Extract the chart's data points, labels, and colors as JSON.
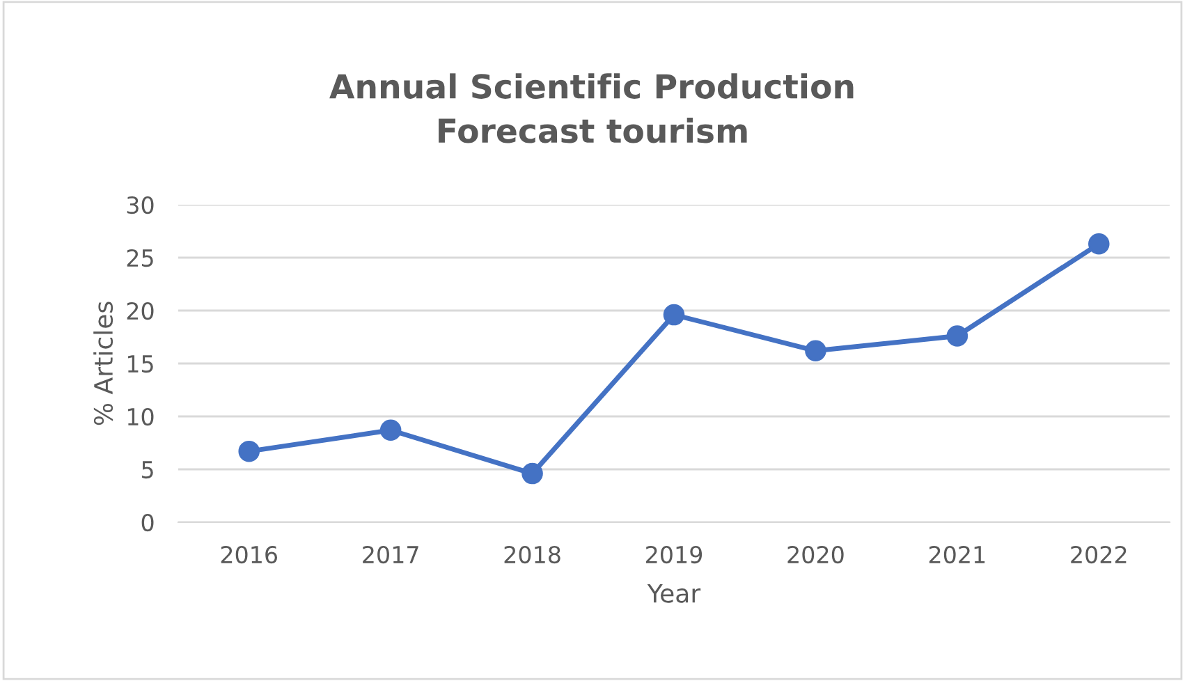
{
  "chart_data": {
    "type": "line",
    "title": "Annual Scientific Production\nForecast tourism",
    "xlabel": "Year",
    "ylabel": "% Articles",
    "categories": [
      "2016",
      "2017",
      "2018",
      "2019",
      "2020",
      "2021",
      "2022"
    ],
    "series": [
      {
        "color": "#4472c4",
        "values": [
          6.7,
          8.7,
          4.6,
          19.6,
          16.2,
          17.6,
          26.3
        ]
      }
    ],
    "ylim": [
      0,
      30
    ],
    "yticks": [
      0,
      5,
      10,
      15,
      20,
      25,
      30
    ],
    "grid": "y",
    "marker": "circle",
    "line_style": "solid"
  }
}
